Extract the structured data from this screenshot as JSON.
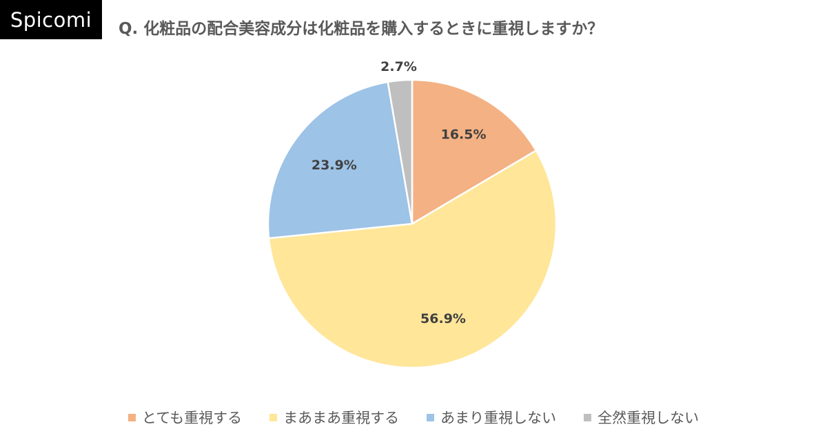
{
  "brand": {
    "logo_text": "Spicomi"
  },
  "header": {
    "title": "Q. 化粧品の配合美容成分は化粧品を購入するときに重視しますか？"
  },
  "chart_data": {
    "type": "pie",
    "title": "Q. 化粧品の配合美容成分は化粧品を購入するときに重視しますか？",
    "legend_position": "bottom",
    "slices": [
      {
        "name": "とても重視する",
        "value": 16.5,
        "label": "16.5%",
        "color": "#F4B183"
      },
      {
        "name": "まあまあ重視する",
        "value": 56.9,
        "label": "56.9%",
        "color": "#FFE699"
      },
      {
        "name": "あまり重視しない",
        "value": 23.9,
        "label": "23.9%",
        "color": "#9DC3E6"
      },
      {
        "name": "全然重視しない",
        "value": 2.7,
        "label": "2.7%",
        "color": "#BFBFBF"
      }
    ]
  }
}
